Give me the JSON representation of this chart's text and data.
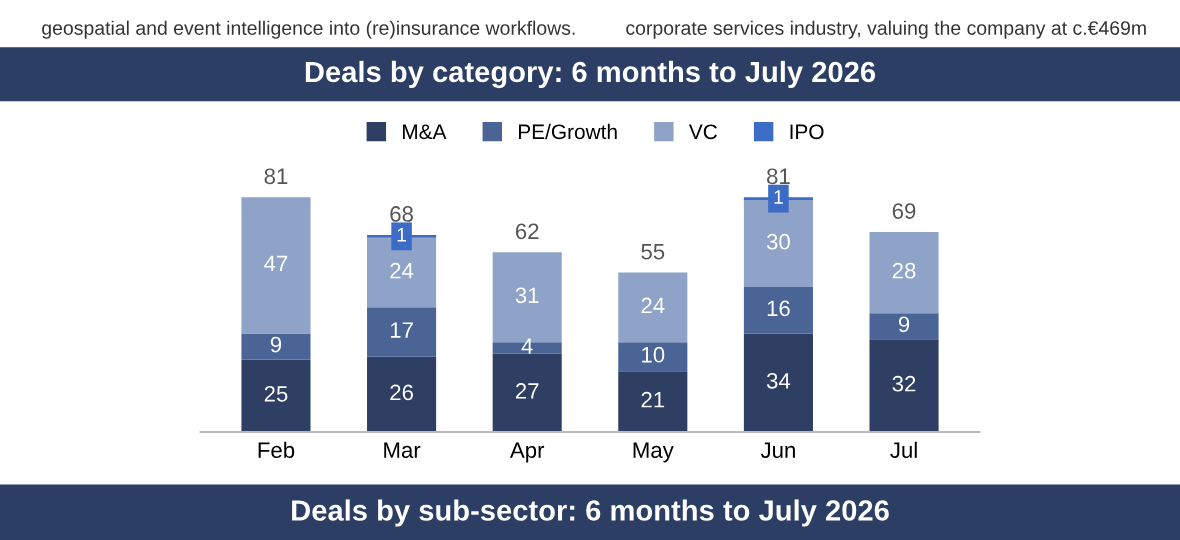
{
  "chart_data": {
    "type": "bar",
    "title": "Deals by category: 6 months to July 2026",
    "stacked": true,
    "data_labels": true,
    "legend": "top",
    "grid": false,
    "categories": [
      "Feb",
      "Mar",
      "Apr",
      "May",
      "Jun",
      "Jul"
    ],
    "series": [
      {
        "name": "M&A",
        "color": "#2e3f63",
        "values": [
          25,
          26,
          27,
          21,
          34,
          32
        ]
      },
      {
        "name": "PE/Growth",
        "color": "#4a6496",
        "values": [
          9,
          17,
          4,
          10,
          16,
          9
        ]
      },
      {
        "name": "VC",
        "color": "#8ea3c7",
        "values": [
          47,
          24,
          31,
          24,
          30,
          28
        ]
      },
      {
        "name": "IPO",
        "color": "#3d6cc6",
        "values": [
          null,
          1,
          null,
          null,
          1,
          null
        ]
      }
    ],
    "totals": [
      "81",
      "68",
      "62",
      "55",
      "81",
      "69"
    ],
    "annotations": [
      "geospatial and event intelligence into (re)insurance workflows.",
      "corporate services industry, valuing the company at c.€469m",
      "Deals by sub-sector: 6 months to July 2026"
    ]
  }
}
